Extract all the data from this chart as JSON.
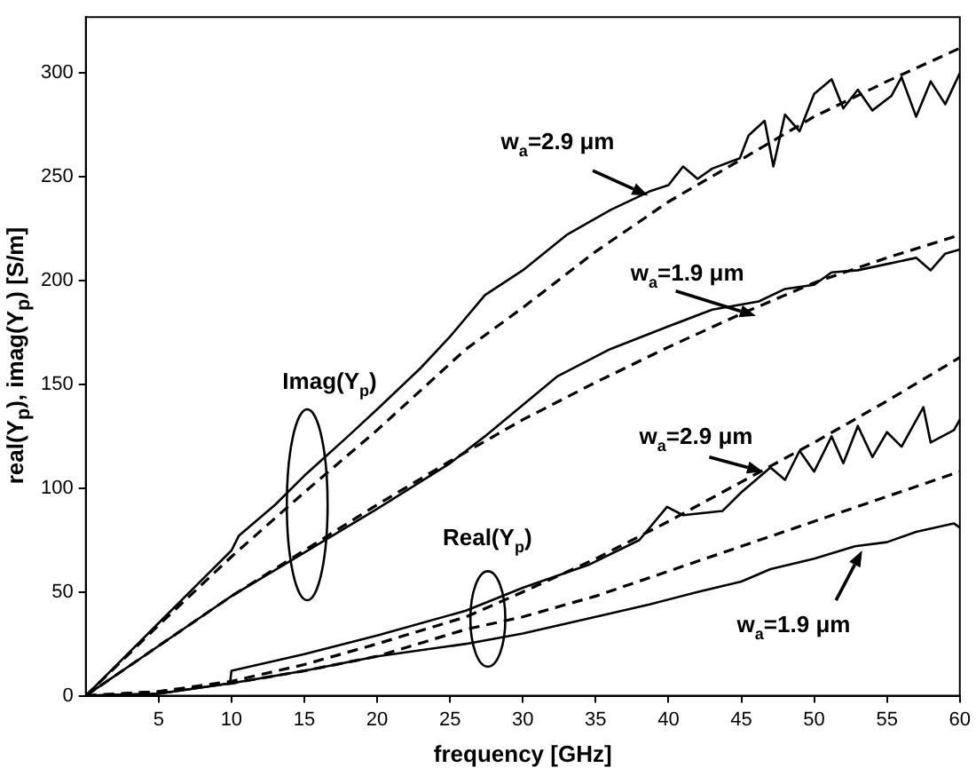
{
  "chart_data": {
    "type": "line",
    "xlabel": "frequency [GHz]",
    "ylabel": "real(Y$_{p}$), imag(Y$_{p}$) [S/m]",
    "xlim": [
      0,
      60
    ],
    "ylim": [
      0,
      327
    ],
    "xticks": [
      5,
      10,
      15,
      20,
      25,
      30,
      35,
      40,
      45,
      50,
      55,
      60
    ],
    "yticks": [
      0,
      50,
      100,
      150,
      200,
      250,
      300
    ],
    "grid": false,
    "legend": false,
    "marker": "none",
    "series": [
      {
        "color": "#000000",
        "line_style": "solid",
        "x": [
          0,
          2,
          5,
          8,
          10,
          10.5,
          13,
          15,
          18,
          20,
          23,
          25,
          27.4,
          30,
          33,
          36,
          38.7,
          40,
          41,
          42,
          43,
          44.9,
          45.5,
          46.6,
          47.2,
          48,
          49,
          50,
          51.2,
          52,
          53,
          54,
          55.3,
          56,
          57,
          58,
          59,
          60
        ],
        "values": [
          0,
          14,
          35,
          56,
          70,
          77,
          92,
          106,
          125,
          138,
          158,
          173,
          193,
          205,
          222,
          234,
          243,
          246,
          255,
          249,
          254,
          259,
          270,
          277,
          255,
          280,
          272,
          290,
          297,
          283,
          292,
          282,
          289,
          298,
          279,
          296,
          285,
          300
        ]
      },
      {
        "color": "#000000",
        "line_style": "dashed",
        "x": [
          0,
          5,
          10,
          15,
          20,
          26.1,
          30,
          35,
          40,
          44.9,
          50,
          55,
          60
        ],
        "values": [
          0,
          34,
          67,
          98,
          128,
          167,
          187,
          214,
          238,
          258,
          279,
          296,
          312
        ]
      },
      {
        "color": "#000000",
        "line_style": "solid",
        "x": [
          0,
          5,
          10,
          15,
          20,
          25,
          27.4,
          32.4,
          36,
          40,
          43,
          46.2,
          48,
          50,
          51.2,
          53,
          55,
          57,
          58,
          59,
          60
        ],
        "values": [
          0,
          24,
          48,
          69,
          90,
          112,
          125,
          154,
          167,
          178,
          186,
          190,
          196,
          198,
          204,
          205,
          208,
          211,
          205,
          213,
          215
        ]
      },
      {
        "color": "#000000",
        "line_style": "dashed",
        "x": [
          0,
          5,
          10,
          15,
          20,
          25,
          30,
          35,
          40,
          45,
          50,
          55,
          60
        ],
        "values": [
          0,
          24,
          48,
          70,
          92,
          113,
          133,
          151,
          168,
          184,
          199,
          211,
          222
        ]
      },
      {
        "color": "#000000",
        "line_style": "solid",
        "x": [
          0,
          5,
          9.9,
          10,
          15,
          20,
          26.1,
          30,
          34.5,
          38,
          39.9,
          41,
          43.7,
          45,
          47,
          48,
          49,
          50,
          51.2,
          52,
          53,
          54,
          55,
          56,
          57.5,
          58,
          59.6,
          60
        ],
        "values": [
          0,
          1,
          6,
          12,
          20,
          29,
          41,
          52,
          63,
          75,
          91,
          87,
          89,
          98,
          110,
          104,
          118,
          108,
          125,
          112,
          130,
          115,
          127,
          120,
          139,
          122,
          128,
          133
        ]
      },
      {
        "color": "#000000",
        "line_style": "dashed",
        "x": [
          0,
          5,
          10,
          15,
          20,
          26.1,
          30,
          35,
          40,
          45,
          50,
          55,
          60
        ],
        "values": [
          0,
          2,
          7,
          15,
          25,
          38,
          50,
          66,
          84,
          103,
          122,
          142,
          163
        ]
      },
      {
        "color": "#000000",
        "line_style": "solid",
        "x": [
          0,
          5,
          10,
          15,
          20,
          26.1,
          30,
          35,
          38.7,
          42,
          45,
          47,
          50,
          52.8,
          55,
          57,
          59.6,
          60
        ],
        "values": [
          0,
          1,
          6,
          12,
          19,
          25,
          30,
          38,
          44,
          50,
          55,
          61,
          66,
          72,
          74,
          79,
          83,
          81
        ]
      },
      {
        "color": "#000000",
        "line_style": "dashed",
        "x": [
          0,
          5,
          10,
          15,
          20,
          26.1,
          30,
          35,
          40,
          45,
          50,
          55,
          60
        ],
        "values": [
          0,
          2,
          6,
          12,
          19,
          32,
          38,
          48,
          60,
          72,
          84,
          96,
          108
        ]
      }
    ],
    "annotations": [
      "Imag(Y$_{p}$)",
      "Real(Y$_{p}$)",
      {
        "text": "w$_{a}$=2.9 μm",
        "x": 38.6,
        "y": 241
      },
      {
        "text": "w$_{a}$=1.9 μm",
        "x": 46,
        "y": 183
      },
      {
        "text": "w$_{a}$=2.9 μm",
        "x": 46.5,
        "y": 108
      },
      {
        "text": "w$_{a}$=1.9 μm",
        "x": 53.3,
        "y": 70
      }
    ]
  }
}
